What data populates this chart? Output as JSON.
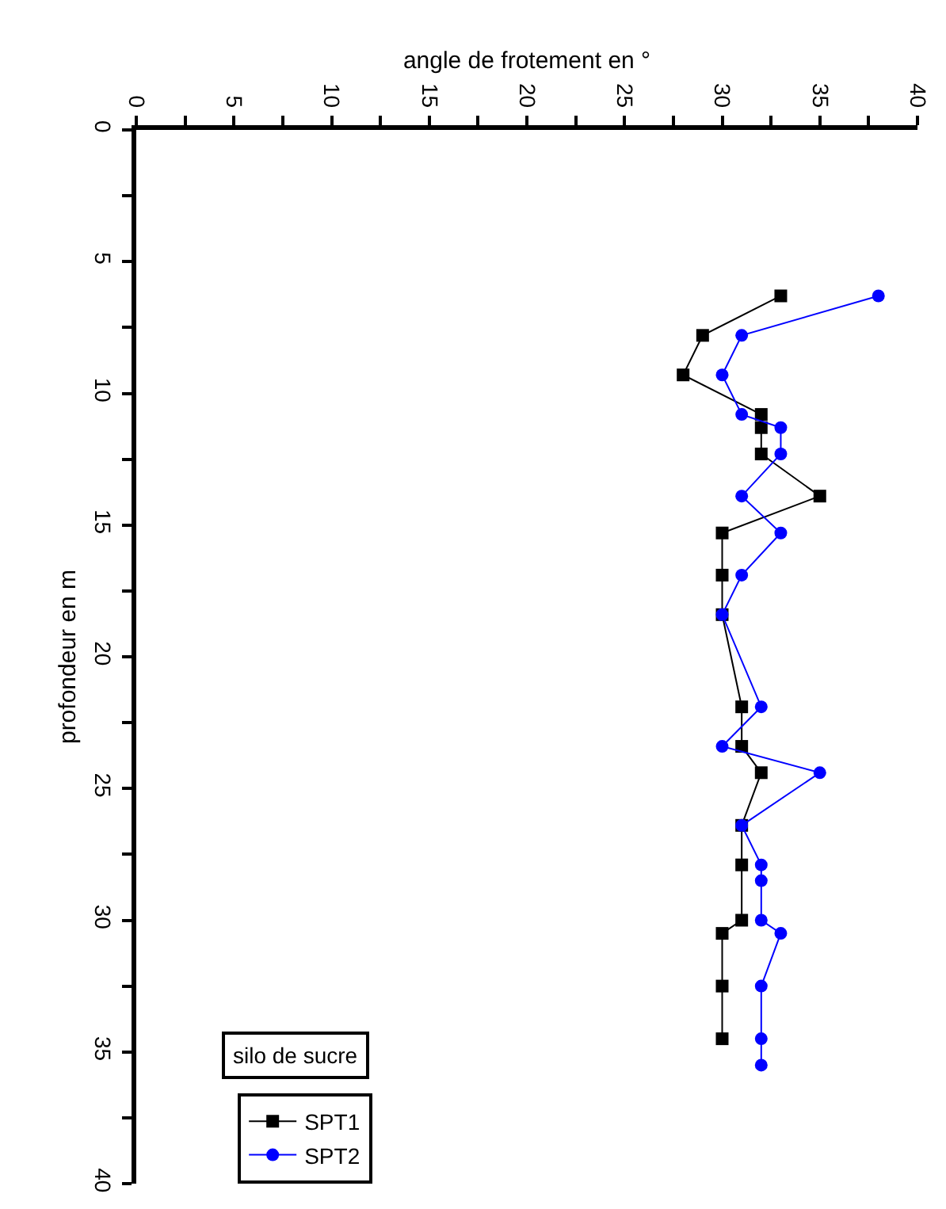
{
  "chart_data": {
    "type": "line",
    "xlabel": "angle de frotement en °",
    "ylabel": "profondeur en m",
    "xlim": [
      0,
      40
    ],
    "ylim": [
      40,
      0
    ],
    "xticks": [
      0,
      {
        "value": 2.5,
        "label": null
      },
      5,
      {
        "value": 7.5,
        "label": null
      },
      10,
      {
        "value": 12.5,
        "label": null
      },
      15,
      {
        "value": 17.5,
        "label": null
      },
      20,
      {
        "value": 22.5,
        "label": null
      },
      25,
      {
        "value": 27.5,
        "label": null
      },
      30,
      {
        "value": 32.5,
        "label": null
      },
      35,
      {
        "value": 37.5,
        "label": null
      },
      40
    ],
    "yticks": [
      0,
      {
        "value": 2.5,
        "label": null
      },
      5,
      {
        "value": 7.5,
        "label": null
      },
      10,
      {
        "value": 12.5,
        "label": null
      },
      15,
      {
        "value": 17.5,
        "label": null
      },
      20,
      {
        "value": 22.5,
        "label": null
      },
      25,
      {
        "value": 27.5,
        "label": null
      },
      30,
      {
        "value": 32.5,
        "label": null
      },
      35,
      {
        "value": 37.5,
        "label": null
      },
      40
    ],
    "series": [
      {
        "name": "SPT1",
        "color": "#000000",
        "marker": "square",
        "x": [
          33,
          29,
          28,
          32,
          32,
          32,
          35,
          30,
          30,
          30,
          31,
          31,
          32,
          31,
          31,
          31,
          30,
          30,
          30
        ],
        "values": [
          6.3,
          7.8,
          9.3,
          10.8,
          11.3,
          12.3,
          13.9,
          15.3,
          16.9,
          18.4,
          21.9,
          23.4,
          24.4,
          26.4,
          27.9,
          30.0,
          30.5,
          32.5,
          34.5
        ]
      },
      {
        "name": "SPT2",
        "color": "#0000ff",
        "marker": "circle",
        "x": [
          38,
          31,
          30,
          31,
          33,
          33,
          31,
          33,
          31,
          30,
          32,
          30,
          35,
          31,
          32,
          32,
          32,
          33,
          32,
          32,
          32
        ],
        "values": [
          6.3,
          7.8,
          9.3,
          10.8,
          11.3,
          12.3,
          13.9,
          15.3,
          16.9,
          18.4,
          21.9,
          23.4,
          24.4,
          26.4,
          27.9,
          28.5,
          30.0,
          30.5,
          32.5,
          34.5,
          35.5
        ]
      }
    ],
    "annotations": [
      "silo de sucre"
    ],
    "legend": "bottom left"
  }
}
